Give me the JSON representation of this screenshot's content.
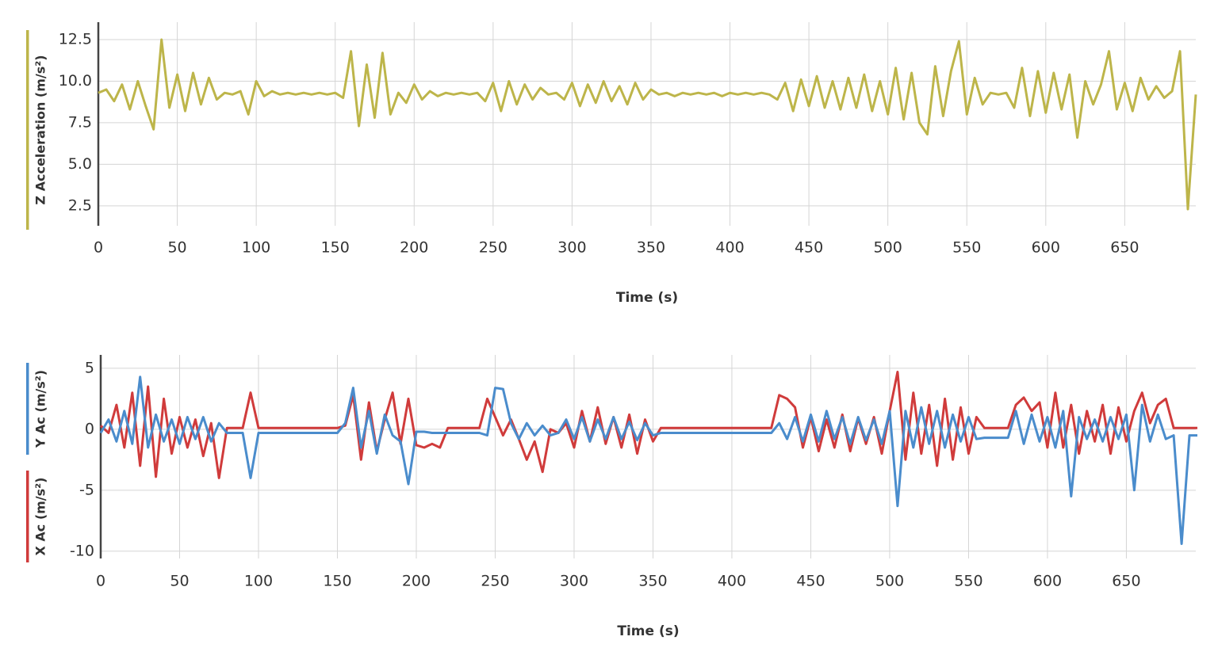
{
  "chart_data": [
    {
      "type": "line",
      "x_label": "Time (s)",
      "x": [
        0,
        5,
        10,
        15,
        20,
        25,
        30,
        35,
        40,
        45,
        50,
        55,
        60,
        65,
        70,
        75,
        80,
        85,
        90,
        95,
        100,
        105,
        110,
        115,
        120,
        125,
        130,
        135,
        140,
        145,
        150,
        155,
        160,
        165,
        170,
        175,
        180,
        185,
        190,
        195,
        200,
        205,
        210,
        215,
        220,
        225,
        230,
        235,
        240,
        245,
        250,
        255,
        260,
        265,
        270,
        275,
        280,
        285,
        290,
        295,
        300,
        305,
        310,
        315,
        320,
        325,
        330,
        335,
        340,
        345,
        350,
        355,
        360,
        365,
        370,
        375,
        380,
        385,
        390,
        395,
        400,
        405,
        410,
        415,
        420,
        425,
        430,
        435,
        440,
        445,
        450,
        455,
        460,
        465,
        470,
        475,
        480,
        485,
        490,
        495,
        500,
        505,
        510,
        515,
        520,
        525,
        530,
        535,
        540,
        545,
        550,
        555,
        560,
        565,
        570,
        575,
        580,
        585,
        590,
        595,
        600,
        605,
        610,
        615,
        620,
        625,
        630,
        635,
        640,
        645,
        650,
        655,
        660,
        665,
        670,
        675,
        680,
        685,
        690,
        695
      ],
      "series": [
        {
          "name": "Z Acceleration (m/s²)",
          "color": "#bdb54a",
          "values": [
            9.3,
            9.5,
            8.8,
            9.8,
            8.3,
            10.0,
            8.5,
            7.1,
            12.5,
            8.4,
            10.4,
            8.2,
            10.5,
            8.6,
            10.2,
            8.9,
            9.3,
            9.2,
            9.4,
            8.0,
            10.0,
            9.1,
            9.4,
            9.2,
            9.3,
            9.2,
            9.3,
            9.2,
            9.3,
            9.2,
            9.3,
            9.0,
            11.8,
            7.3,
            11.0,
            7.8,
            11.7,
            8.0,
            9.3,
            8.7,
            9.8,
            8.9,
            9.4,
            9.1,
            9.3,
            9.2,
            9.3,
            9.2,
            9.3,
            8.8,
            9.9,
            8.2,
            10.0,
            8.6,
            9.8,
            8.9,
            9.6,
            9.2,
            9.3,
            8.9,
            9.9,
            8.5,
            9.8,
            8.7,
            10.0,
            8.8,
            9.7,
            8.6,
            9.9,
            8.9,
            9.5,
            9.2,
            9.3,
            9.1,
            9.3,
            9.2,
            9.3,
            9.2,
            9.3,
            9.1,
            9.3,
            9.2,
            9.3,
            9.2,
            9.3,
            9.2,
            8.9,
            9.9,
            8.2,
            10.1,
            8.5,
            10.3,
            8.4,
            10.0,
            8.3,
            10.2,
            8.4,
            10.4,
            8.2,
            10.0,
            8.0,
            10.8,
            7.7,
            10.5,
            7.5,
            6.8,
            10.9,
            7.9,
            10.6,
            12.4,
            8.0,
            10.2,
            8.6,
            9.3,
            9.2,
            9.3,
            8.4,
            10.8,
            7.9,
            10.6,
            8.1,
            10.5,
            8.3,
            10.4,
            6.6,
            10.0,
            8.6,
            9.8,
            11.8,
            8.3,
            9.9,
            8.2,
            10.2,
            8.9,
            9.7,
            9.0,
            9.4,
            11.8,
            2.3,
            9.2
          ]
        }
      ],
      "xlim": [
        0,
        695
      ],
      "ylim": [
        1.3,
        13.55
      ],
      "xticks": [
        0,
        50,
        100,
        150,
        200,
        250,
        300,
        350,
        400,
        450,
        500,
        550,
        600,
        650
      ],
      "yticks": [
        2.5,
        {
          "value": 5,
          "label": "5.0"
        },
        7.5,
        {
          "value": 10,
          "label": "10.0"
        },
        12.5
      ],
      "grid": true
    },
    {
      "type": "line",
      "x_label": "Time (s)",
      "x": [
        0,
        5,
        10,
        15,
        20,
        25,
        30,
        35,
        40,
        45,
        50,
        55,
        60,
        65,
        70,
        75,
        80,
        85,
        90,
        95,
        100,
        105,
        110,
        115,
        120,
        125,
        130,
        135,
        140,
        145,
        150,
        155,
        160,
        165,
        170,
        175,
        180,
        185,
        190,
        195,
        200,
        205,
        210,
        215,
        220,
        225,
        230,
        235,
        240,
        245,
        250,
        255,
        260,
        265,
        270,
        275,
        280,
        285,
        290,
        295,
        300,
        305,
        310,
        315,
        320,
        325,
        330,
        335,
        340,
        345,
        350,
        355,
        360,
        365,
        370,
        375,
        380,
        385,
        390,
        395,
        400,
        405,
        410,
        415,
        420,
        425,
        430,
        435,
        440,
        445,
        450,
        455,
        460,
        465,
        470,
        475,
        480,
        485,
        490,
        495,
        500,
        505,
        510,
        515,
        520,
        525,
        530,
        535,
        540,
        545,
        550,
        555,
        560,
        565,
        570,
        575,
        580,
        585,
        590,
        595,
        600,
        605,
        610,
        615,
        620,
        625,
        630,
        635,
        640,
        645,
        650,
        655,
        660,
        665,
        670,
        675,
        680,
        685,
        690,
        695
      ],
      "series": [
        {
          "name": "X Ac (m/s²)",
          "color": "#d03b3b",
          "values": [
            0.3,
            -0.3,
            2.0,
            -1.5,
            3.0,
            -3.0,
            3.5,
            -3.9,
            2.5,
            -2.0,
            1.0,
            -1.5,
            0.8,
            -2.2,
            0.5,
            -4.0,
            0.1,
            0.1,
            0.1,
            3.0,
            0.1,
            0.1,
            0.1,
            0.1,
            0.1,
            0.1,
            0.1,
            0.1,
            0.1,
            0.1,
            0.1,
            0.3,
            2.8,
            -2.5,
            2.2,
            -1.8,
            0.8,
            3.0,
            -1.2,
            2.5,
            -1.3,
            -1.5,
            -1.2,
            -1.5,
            0.1,
            0.1,
            0.1,
            0.1,
            0.1,
            2.5,
            1.0,
            -0.5,
            0.8,
            -0.8,
            -2.5,
            -1.0,
            -3.5,
            0.0,
            -0.3,
            0.5,
            -1.5,
            1.5,
            -1.0,
            1.8,
            -1.2,
            1.0,
            -1.5,
            1.2,
            -2.0,
            0.8,
            -1.0,
            0.1,
            0.1,
            0.1,
            0.1,
            0.1,
            0.1,
            0.1,
            0.1,
            0.1,
            0.1,
            0.1,
            0.1,
            0.1,
            0.1,
            0.1,
            2.8,
            2.5,
            1.8,
            -1.5,
            1.0,
            -1.8,
            0.8,
            -1.5,
            1.2,
            -1.8,
            0.9,
            -1.2,
            1.0,
            -2.0,
            1.5,
            4.7,
            -2.5,
            3.0,
            -2.0,
            2.0,
            -3.0,
            2.5,
            -2.5,
            1.8,
            -2.0,
            1.0,
            0.1,
            0.1,
            0.1,
            0.1,
            2.0,
            2.6,
            1.5,
            2.2,
            -1.5,
            3.0,
            -1.5,
            2.0,
            -2.0,
            1.5,
            -1.0,
            2.0,
            -2.0,
            1.8,
            -1.0,
            1.5,
            3.0,
            0.5,
            2.0,
            2.5,
            0.1,
            0.1,
            0.1,
            0.1
          ]
        },
        {
          "name": "Y Ac (m/s²)",
          "color": "#4a8ccc",
          "values": [
            -0.3,
            0.8,
            -1.0,
            1.5,
            -1.2,
            4.3,
            -1.5,
            1.2,
            -1.0,
            0.8,
            -1.2,
            1.0,
            -0.8,
            1.0,
            -1.0,
            0.5,
            -0.3,
            -0.3,
            -0.3,
            -4.0,
            -0.3,
            -0.3,
            -0.3,
            -0.3,
            -0.3,
            -0.3,
            -0.3,
            -0.3,
            -0.3,
            -0.3,
            -0.3,
            0.5,
            3.4,
            -1.5,
            1.5,
            -2.0,
            1.2,
            -0.5,
            -1.0,
            -4.5,
            -0.2,
            -0.2,
            -0.3,
            -0.3,
            -0.3,
            -0.3,
            -0.3,
            -0.3,
            -0.3,
            -0.5,
            3.4,
            3.3,
            0.5,
            -0.8,
            0.5,
            -0.5,
            0.3,
            -0.5,
            -0.3,
            0.8,
            -0.8,
            1.0,
            -1.0,
            0.8,
            -0.8,
            1.0,
            -0.8,
            0.6,
            -0.9,
            0.5,
            -0.5,
            -0.3,
            -0.3,
            -0.3,
            -0.3,
            -0.3,
            -0.3,
            -0.3,
            -0.3,
            -0.3,
            -0.3,
            -0.3,
            -0.3,
            -0.3,
            -0.3,
            -0.3,
            0.5,
            -0.8,
            1.0,
            -1.0,
            1.2,
            -1.0,
            1.5,
            -0.8,
            1.0,
            -1.2,
            1.0,
            -0.9,
            0.8,
            -1.2,
            1.5,
            -6.3,
            1.5,
            -1.5,
            1.8,
            -1.2,
            1.5,
            -1.5,
            1.2,
            -1.0,
            1.0,
            -0.8,
            -0.7,
            -0.7,
            -0.7,
            -0.7,
            1.5,
            -1.2,
            1.2,
            -1.0,
            1.0,
            -1.5,
            1.5,
            -5.5,
            1.0,
            -0.8,
            0.8,
            -1.0,
            1.0,
            -0.8,
            1.2,
            -5.0,
            2.0,
            -1.0,
            1.2,
            -0.8,
            -0.5,
            -9.4,
            -0.5,
            -0.5
          ]
        }
      ],
      "xlim": [
        0,
        694
      ],
      "ylim": [
        -10.6,
        6.1
      ],
      "xticks": [
        0,
        50,
        100,
        150,
        200,
        250,
        300,
        350,
        400,
        450,
        500,
        550,
        600,
        650
      ],
      "yticks": [
        -10,
        -5,
        0,
        5
      ],
      "grid": true
    }
  ]
}
